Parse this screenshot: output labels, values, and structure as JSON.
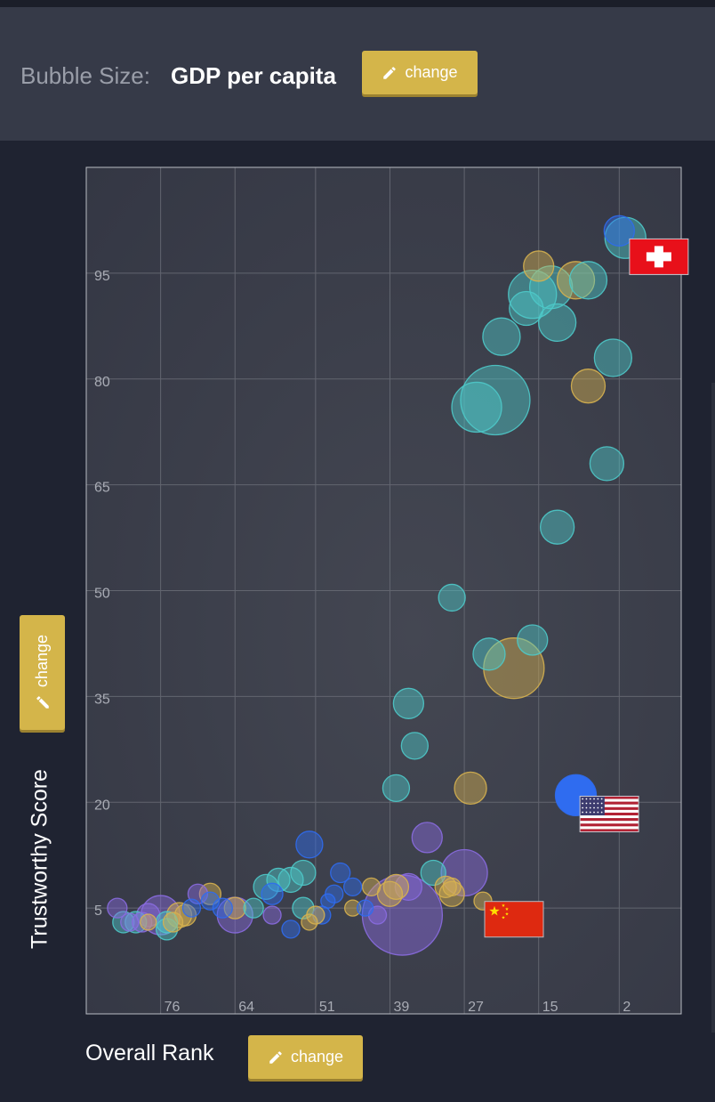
{
  "header": {
    "bubble_size_label": "Bubble Size:",
    "bubble_size_value": "GDP per capita"
  },
  "buttons": {
    "change_label": "change"
  },
  "axis": {
    "x_title": "Overall Rank",
    "y_title": "Trustworthy Score"
  },
  "colors": {
    "teal": "#4ec9c9",
    "gold": "#d6b14f",
    "blue": "#2f6cf0",
    "purple": "#8a6be0",
    "button": "#d4b54a"
  },
  "icons": {
    "edit": "pencil-icon"
  },
  "chart_data": {
    "type": "scatter",
    "x_axis": {
      "title": "Overall Rank",
      "ticks": [
        76,
        64,
        51,
        39,
        27,
        15,
        2
      ],
      "range": [
        88,
        -8
      ],
      "reversed": true
    },
    "y_axis": {
      "title": "Trustworthy Score",
      "ticks": [
        5,
        20,
        35,
        50,
        65,
        80,
        95
      ],
      "range": [
        -10,
        110
      ]
    },
    "grid": true,
    "flags": [
      {
        "country": "Switzerland",
        "icon": "swiss-flag-icon"
      },
      {
        "country": "United States",
        "icon": "us-flag-icon"
      },
      {
        "country": "China",
        "icon": "china-flag-icon"
      }
    ],
    "points": [
      {
        "x": 2,
        "y": 101,
        "r": 17,
        "color": "blue"
      },
      {
        "x": 1,
        "y": 100,
        "r": 23,
        "color": "teal",
        "flag": "swiss-flag-icon"
      },
      {
        "x": 15,
        "y": 96,
        "r": 17,
        "color": "gold"
      },
      {
        "x": 9,
        "y": 94,
        "r": 21,
        "color": "gold"
      },
      {
        "x": 7,
        "y": 94,
        "r": 21,
        "color": "teal"
      },
      {
        "x": 13,
        "y": 93,
        "r": 24,
        "color": "teal"
      },
      {
        "x": 16,
        "y": 92,
        "r": 27,
        "color": "teal"
      },
      {
        "x": 17,
        "y": 90,
        "r": 19,
        "color": "teal"
      },
      {
        "x": 12,
        "y": 88,
        "r": 21,
        "color": "teal"
      },
      {
        "x": 21,
        "y": 86,
        "r": 21,
        "color": "teal"
      },
      {
        "x": 3,
        "y": 83,
        "r": 21,
        "color": "teal"
      },
      {
        "x": 7,
        "y": 79,
        "r": 19,
        "color": "gold"
      },
      {
        "x": 22,
        "y": 77,
        "r": 39,
        "color": "teal"
      },
      {
        "x": 25,
        "y": 76,
        "r": 28,
        "color": "teal"
      },
      {
        "x": 4,
        "y": 68,
        "r": 19,
        "color": "teal"
      },
      {
        "x": 12,
        "y": 59,
        "r": 19,
        "color": "teal"
      },
      {
        "x": 29,
        "y": 49,
        "r": 15,
        "color": "teal"
      },
      {
        "x": 16,
        "y": 43,
        "r": 17,
        "color": "teal"
      },
      {
        "x": 23,
        "y": 41,
        "r": 18,
        "color": "teal"
      },
      {
        "x": 19,
        "y": 39,
        "r": 34,
        "color": "gold"
      },
      {
        "x": 36,
        "y": 34,
        "r": 17,
        "color": "teal"
      },
      {
        "x": 35,
        "y": 28,
        "r": 15,
        "color": "teal"
      },
      {
        "x": 26,
        "y": 22,
        "r": 18,
        "color": "gold"
      },
      {
        "x": 38,
        "y": 22,
        "r": 15,
        "color": "teal"
      },
      {
        "x": 9,
        "y": 21,
        "r": 23,
        "color": "blue",
        "flag": "us-flag-icon"
      },
      {
        "x": 33,
        "y": 15,
        "r": 17,
        "color": "purple"
      },
      {
        "x": 27,
        "y": 10,
        "r": 26,
        "color": "purple"
      },
      {
        "x": 32,
        "y": 10,
        "r": 14,
        "color": "teal"
      },
      {
        "x": 29,
        "y": 8,
        "r": 10,
        "color": "gold"
      },
      {
        "x": 30,
        "y": 8,
        "r": 12,
        "color": "gold"
      },
      {
        "x": 29,
        "y": 7,
        "r": 14,
        "color": "gold"
      },
      {
        "x": 24,
        "y": 6,
        "r": 10,
        "color": "gold",
        "flag": "china-flag-icon"
      },
      {
        "x": 37,
        "y": 4,
        "r": 45,
        "color": "purple"
      },
      {
        "x": 36,
        "y": 8,
        "r": 15,
        "color": "purple"
      },
      {
        "x": 38,
        "y": 8,
        "r": 14,
        "color": "gold"
      },
      {
        "x": 39,
        "y": 7,
        "r": 14,
        "color": "gold"
      },
      {
        "x": 42,
        "y": 8,
        "r": 10,
        "color": "gold"
      },
      {
        "x": 45,
        "y": 8,
        "r": 10,
        "color": "blue"
      },
      {
        "x": 47,
        "y": 10,
        "r": 11,
        "color": "blue"
      },
      {
        "x": 48,
        "y": 7,
        "r": 10,
        "color": "blue"
      },
      {
        "x": 45,
        "y": 5,
        "r": 9,
        "color": "gold"
      },
      {
        "x": 43,
        "y": 5,
        "r": 9,
        "color": "blue"
      },
      {
        "x": 49,
        "y": 6,
        "r": 8,
        "color": "blue"
      },
      {
        "x": 41,
        "y": 4,
        "r": 10,
        "color": "purple"
      },
      {
        "x": 50,
        "y": 4,
        "r": 10,
        "color": "blue"
      },
      {
        "x": 51,
        "y": 4,
        "r": 10,
        "color": "gold"
      },
      {
        "x": 52,
        "y": 3,
        "r": 9,
        "color": "gold"
      },
      {
        "x": 52,
        "y": 14,
        "r": 15,
        "color": "blue"
      },
      {
        "x": 53,
        "y": 10,
        "r": 14,
        "color": "teal"
      },
      {
        "x": 55,
        "y": 9,
        "r": 14,
        "color": "teal"
      },
      {
        "x": 57,
        "y": 9,
        "r": 13,
        "color": "teal"
      },
      {
        "x": 53,
        "y": 5,
        "r": 12,
        "color": "teal"
      },
      {
        "x": 59,
        "y": 8,
        "r": 14,
        "color": "teal"
      },
      {
        "x": 58,
        "y": 7,
        "r": 12,
        "color": "blue"
      },
      {
        "x": 55,
        "y": 2,
        "r": 10,
        "color": "blue"
      },
      {
        "x": 58,
        "y": 4,
        "r": 10,
        "color": "purple"
      },
      {
        "x": 61,
        "y": 5,
        "r": 11,
        "color": "teal"
      },
      {
        "x": 64,
        "y": 4,
        "r": 20,
        "color": "purple"
      },
      {
        "x": 64,
        "y": 5,
        "r": 12,
        "color": "gold"
      },
      {
        "x": 66,
        "y": 5,
        "r": 11,
        "color": "blue"
      },
      {
        "x": 68,
        "y": 6,
        "r": 10,
        "color": "blue"
      },
      {
        "x": 68,
        "y": 7,
        "r": 12,
        "color": "gold"
      },
      {
        "x": 70,
        "y": 7,
        "r": 11,
        "color": "purple"
      },
      {
        "x": 71,
        "y": 5,
        "r": 10,
        "color": "blue"
      },
      {
        "x": 72,
        "y": 4,
        "r": 12,
        "color": "gold"
      },
      {
        "x": 73,
        "y": 4,
        "r": 14,
        "color": "gold"
      },
      {
        "x": 74,
        "y": 3,
        "r": 11,
        "color": "gold"
      },
      {
        "x": 75,
        "y": 3,
        "r": 12,
        "color": "teal"
      },
      {
        "x": 76,
        "y": 4,
        "r": 22,
        "color": "purple"
      },
      {
        "x": 78,
        "y": 4,
        "r": 13,
        "color": "purple"
      },
      {
        "x": 78,
        "y": 3,
        "r": 9,
        "color": "gold"
      },
      {
        "x": 79,
        "y": 3,
        "r": 11,
        "color": "purple"
      },
      {
        "x": 80,
        "y": 3,
        "r": 12,
        "color": "teal"
      },
      {
        "x": 81,
        "y": 3,
        "r": 10,
        "color": "purple"
      },
      {
        "x": 82,
        "y": 3,
        "r": 12,
        "color": "teal"
      },
      {
        "x": 83,
        "y": 5,
        "r": 11,
        "color": "purple"
      },
      {
        "x": 75,
        "y": 2,
        "r": 12,
        "color": "teal"
      }
    ]
  }
}
